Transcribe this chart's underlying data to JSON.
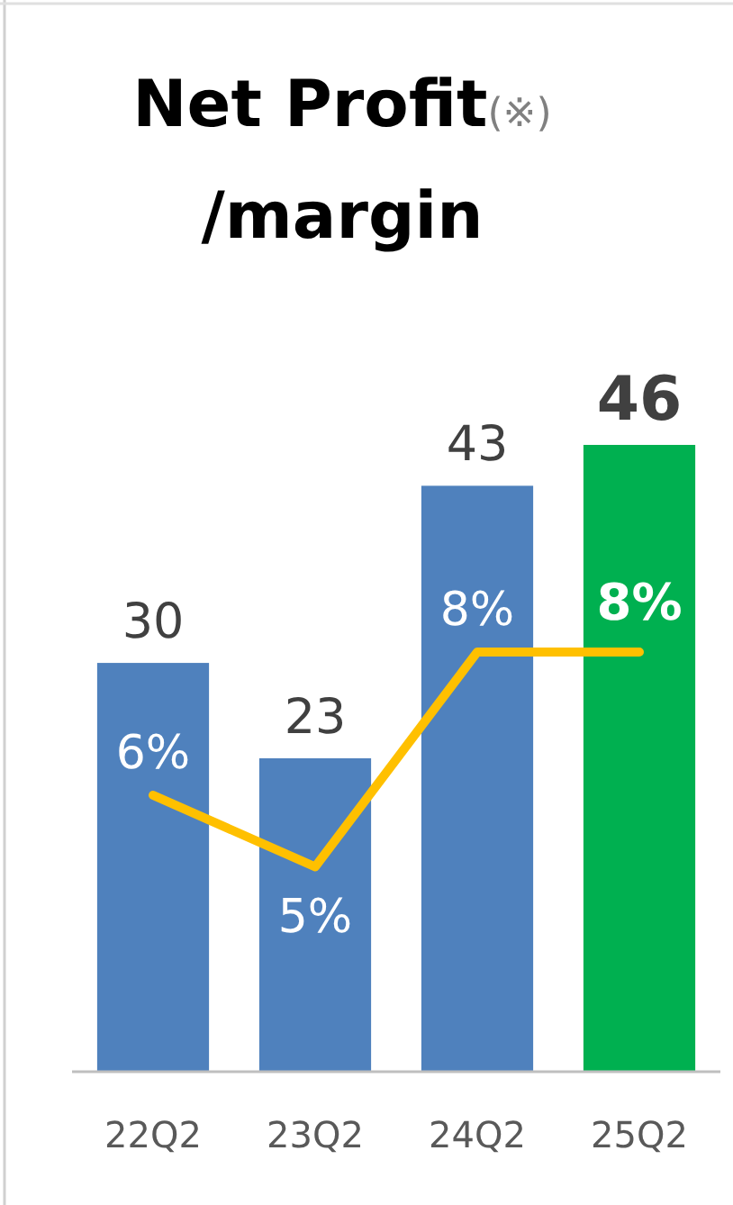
{
  "chart_data": {
    "type": "bar",
    "title": "Net Profit(※)\n/margin",
    "categories": [
      "22Q2",
      "23Q2",
      "24Q2",
      "25Q2"
    ],
    "data_labels": true,
    "series": [
      {
        "colors": [
          "#4f81bd",
          "#4f81bd",
          "#4f81bd",
          "#00b050"
        ],
        "values": [
          30,
          23,
          43,
          46
        ]
      },
      {
        "type": "line",
        "axis": "y2",
        "color": "#ffc000",
        "values": [
          6,
          5,
          8,
          8
        ],
        "value_labels": [
          "6%",
          "5%",
          "8%",
          "8%"
        ]
      }
    ]
  }
}
